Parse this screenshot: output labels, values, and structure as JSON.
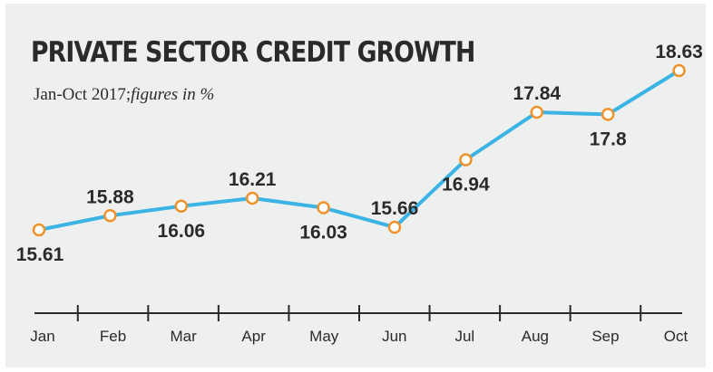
{
  "chart_data": {
    "type": "line",
    "title": "PRIVATE SECTOR CREDIT GROWTH",
    "subtitle_period": "Jan-Oct 2017;",
    "subtitle_unit": "figures in %",
    "categories": [
      "Jan",
      "Feb",
      "Mar",
      "Apr",
      "May",
      "Jun",
      "Jul",
      "Aug",
      "Sep",
      "Oct"
    ],
    "values": [
      15.61,
      15.88,
      16.06,
      16.21,
      16.03,
      15.66,
      16.94,
      17.84,
      17.8,
      18.63
    ],
    "value_labels": [
      "15.61",
      "15.88",
      "16.06",
      "16.21",
      "16.03",
      "15.66",
      "16.94",
      "17.84",
      "17.8",
      "18.63"
    ],
    "label_positions": [
      "below",
      "above",
      "below",
      "above",
      "below",
      "above",
      "below",
      "above",
      "below",
      "above"
    ],
    "grid": false,
    "legend": "none"
  },
  "colors": {
    "background": "#eef0f0",
    "line": "#3bb3e4",
    "marker_stroke": "#f0922b",
    "marker_fill": "#ffffff",
    "text": "#2a2a2a"
  }
}
